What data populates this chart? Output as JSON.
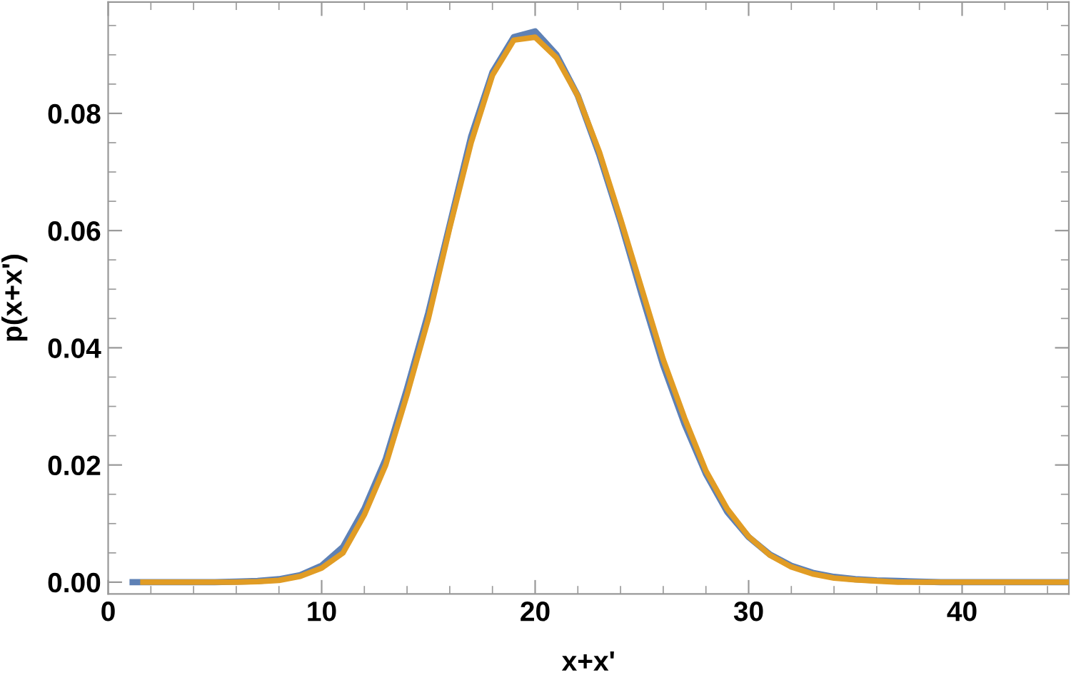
{
  "chart_data": {
    "type": "line",
    "xlabel": "x+x'",
    "ylabel": "p(x+x')",
    "xlim": [
      0,
      45
    ],
    "xticks": [
      0,
      10,
      20,
      30,
      40
    ],
    "ylim": [
      -0.002,
      0.099
    ],
    "yticks": [
      {
        "value": 0,
        "label": "0.00"
      },
      {
        "value": 0.02,
        "label": "0.02"
      },
      {
        "value": 0.04,
        "label": "0.04"
      },
      {
        "value": 0.06,
        "label": "0.06"
      },
      {
        "value": 0.08,
        "label": "0.08"
      }
    ],
    "grid": false,
    "legend": false,
    "marker": "none",
    "line_style": "solid",
    "series": [
      {
        "color": "#5e81b5",
        "x": [
          1,
          2,
          3,
          4,
          5,
          6,
          7,
          8,
          9,
          10,
          11,
          12,
          13,
          14,
          15,
          16,
          17,
          18,
          19,
          20,
          21,
          22,
          23,
          24,
          25,
          26,
          27,
          28,
          29,
          30,
          31,
          32,
          33,
          34,
          35,
          36,
          37,
          38,
          39,
          40,
          41,
          42,
          43,
          44,
          45
        ],
        "values": [
          0,
          0,
          0,
          0,
          0,
          0.0001,
          0.0002,
          0.0005,
          0.0012,
          0.0028,
          0.006,
          0.0125,
          0.021,
          0.033,
          0.046,
          0.061,
          0.076,
          0.087,
          0.093,
          0.094,
          0.09,
          0.083,
          0.073,
          0.0615,
          0.049,
          0.037,
          0.027,
          0.0185,
          0.012,
          0.0077,
          0.0047,
          0.0028,
          0.0016,
          0.0009,
          0.0005,
          0.0003,
          0.0002,
          0.0001,
          0,
          0,
          0,
          0,
          0,
          0,
          0
        ]
      },
      {
        "color": "#e19c24",
        "x": [
          1.5,
          2,
          3,
          4,
          5,
          6,
          7,
          8,
          9,
          10,
          11,
          12,
          13,
          14,
          15,
          16,
          17,
          18,
          19,
          20,
          21,
          22,
          23,
          24,
          25,
          26,
          27,
          28,
          29,
          30,
          31,
          32,
          33,
          34,
          35,
          36,
          37,
          38,
          39,
          40,
          41,
          42,
          43,
          44,
          45
        ],
        "values": [
          0,
          0,
          0,
          0,
          0,
          0,
          0.0001,
          0.0003,
          0.001,
          0.0024,
          0.005,
          0.0115,
          0.02,
          0.032,
          0.045,
          0.0605,
          0.075,
          0.0865,
          0.0925,
          0.093,
          0.0895,
          0.083,
          0.0735,
          0.062,
          0.05,
          0.038,
          0.028,
          0.019,
          0.0125,
          0.0078,
          0.0046,
          0.0026,
          0.0014,
          0.0007,
          0.0004,
          0.0002,
          0,
          0,
          0,
          0,
          0,
          0,
          0,
          0,
          0
        ]
      }
    ]
  }
}
